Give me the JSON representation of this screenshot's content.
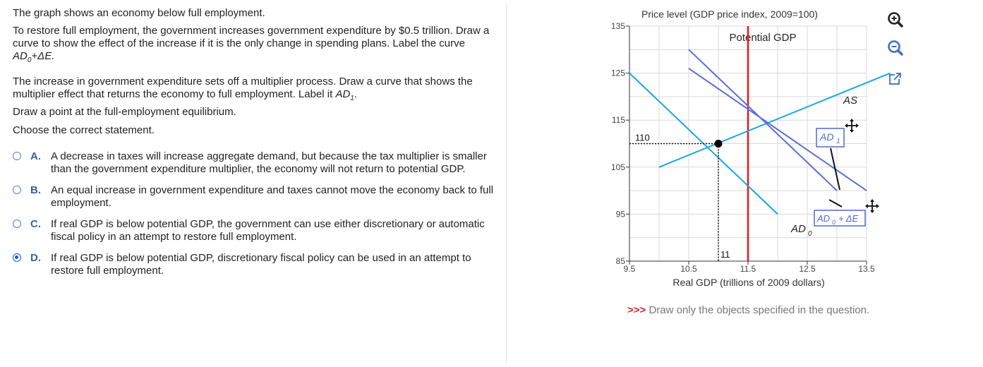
{
  "question": {
    "intro": "The graph shows an economy below full employment.",
    "task1": "To restore full employment, the government increases government expenditure by $0.5 trillion. Draw a curve to show the effect of the increase if it is the only change in spending plans. Label the curve ",
    "task1_label": "AD",
    "task1_sub": "0",
    "task1_suffix": "+ΔE.",
    "task2": "The increase in government expenditure sets off a multiplier process. Draw a curve that shows the multiplier effect that returns the economy to full employment. Label it ",
    "task2_label": "AD",
    "task2_sub": "1",
    "task2_suffix": ".",
    "task3": "Draw a point at the full-employment equilibrium.",
    "task4": "Choose the correct statement."
  },
  "options": [
    {
      "letter": "A.",
      "text": "A decrease in taxes will increase aggregate demand, but because the tax multiplier is smaller than the government expenditure multiplier, the economy will not return to potential GDP.",
      "selected": false
    },
    {
      "letter": "B.",
      "text": "An equal increase in government expenditure and taxes cannot move the economy back to full employment.",
      "selected": false
    },
    {
      "letter": "C.",
      "text": "If real GDP is below potential GDP, the government can use either discretionary or automatic fiscal policy in an attempt to restore full employment.",
      "selected": false
    },
    {
      "letter": "D.",
      "text": "If real GDP is below potential GDP, discretionary fiscal policy can be used in an attempt to restore full employment.",
      "selected": true
    }
  ],
  "chart_data": {
    "type": "line",
    "ylabel": "Price level (GDP price index, 2009=100)",
    "xlabel": "Real GDP (trillions of 2009 dollars)",
    "x_ticks": [
      "9.5",
      "10.5",
      "11.5",
      "12.5",
      "13.5"
    ],
    "y_ticks": [
      "85",
      "95",
      "105",
      "115",
      "125",
      "135"
    ],
    "xlim": [
      9.5,
      13.5
    ],
    "ylim": [
      85,
      135
    ],
    "potential_gdp": {
      "label": "Potential GDP",
      "x": 11.5,
      "color": "#e8141c"
    },
    "series": [
      {
        "name": "AS",
        "color": "#1aa6e0",
        "points": [
          [
            10,
            105
          ],
          [
            13.9,
            125
          ]
        ]
      },
      {
        "name": "AD0",
        "color": "#1aa6e0",
        "points": [
          [
            9.5,
            125
          ],
          [
            12,
            95
          ]
        ]
      },
      {
        "name": "AD0+ΔE",
        "color": "#5b6fd8",
        "points": [
          [
            10.5,
            130
          ],
          [
            13,
            100
          ]
        ]
      },
      {
        "name": "AD1",
        "color": "#5b6fd8",
        "points": [
          [
            10.5,
            126
          ],
          [
            13.5,
            100
          ]
        ]
      }
    ],
    "equilibrium": {
      "x": 11,
      "y": 110,
      "x_label": "11",
      "y_label": "110"
    },
    "curve_labels": {
      "as": "AS",
      "ad0": "AD",
      "ad0_sub": "0",
      "ad1": "AD",
      "ad1_sub": "1",
      "adde": "AD",
      "adde_sub": "0",
      "adde_suffix": "+ ΔE"
    },
    "grid": true
  },
  "tools": {
    "zoom_in": "zoom-in-icon",
    "zoom_out": "zoom-out-icon",
    "popout": "popout-icon"
  },
  "hint": {
    "arrows": ">>>",
    "text": "Draw only the objects specified in the question."
  }
}
